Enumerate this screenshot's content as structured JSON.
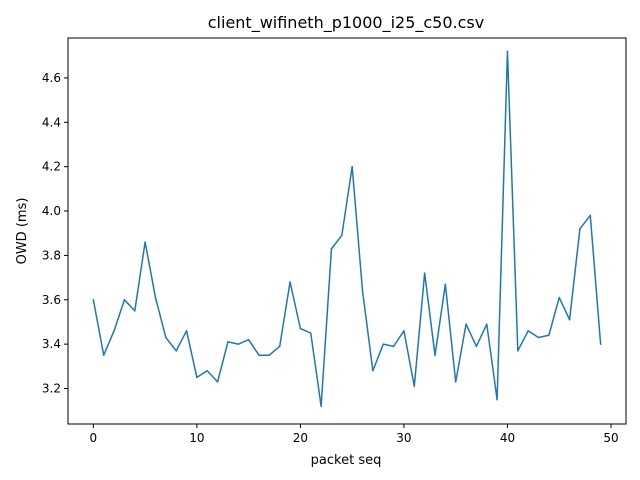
{
  "chart_data": {
    "type": "line",
    "title": "client_wifineth_p1000_i25_c50.csv",
    "xlabel": "packet seq",
    "ylabel": "OWD (ms)",
    "xlim": [
      -2.45,
      51.45
    ],
    "ylim": [
      3.04,
      4.78
    ],
    "xticks": [
      0,
      10,
      20,
      30,
      40,
      50
    ],
    "yticks": [
      3.2,
      3.4,
      3.6,
      3.8,
      4.0,
      4.2,
      4.4,
      4.6
    ],
    "xtick_labels": [
      "0",
      "10",
      "20",
      "30",
      "40",
      "50"
    ],
    "ytick_labels": [
      "3.2",
      "3.4",
      "3.6",
      "3.8",
      "4.0",
      "4.2",
      "4.4",
      "4.6"
    ],
    "grid": false,
    "series": [
      {
        "color": "#1f77b4",
        "x": [
          0,
          1,
          2,
          3,
          4,
          5,
          6,
          7,
          8,
          9,
          10,
          11,
          12,
          13,
          14,
          15,
          16,
          17,
          18,
          19,
          20,
          21,
          22,
          23,
          24,
          25,
          26,
          27,
          28,
          29,
          30,
          31,
          32,
          33,
          34,
          35,
          36,
          37,
          38,
          39,
          40,
          41,
          42,
          43,
          44,
          45,
          46,
          47,
          48,
          49
        ],
        "y": [
          3.6,
          3.35,
          3.46,
          3.6,
          3.55,
          3.86,
          3.61,
          3.43,
          3.37,
          3.46,
          3.25,
          3.28,
          3.23,
          3.41,
          3.4,
          3.42,
          3.35,
          3.35,
          3.39,
          3.68,
          3.47,
          3.45,
          3.12,
          3.83,
          3.89,
          4.2,
          3.64,
          3.28,
          3.4,
          3.39,
          3.46,
          3.21,
          3.72,
          3.35,
          3.67,
          3.23,
          3.49,
          3.39,
          3.49,
          3.15,
          4.72,
          3.37,
          3.46,
          3.43,
          3.44,
          3.61,
          3.51,
          3.92,
          3.98,
          3.4
        ]
      }
    ]
  }
}
